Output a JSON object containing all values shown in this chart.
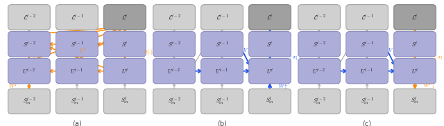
{
  "box_purple": "#ADADD9",
  "box_gray_light": "#D0D0D0",
  "box_gray_dark": "#A0A0A0",
  "edge_purple": "#8888BB",
  "edge_gray": "#999999",
  "orange": "#FF8800",
  "blue": "#2255EE",
  "gray_arr": "#AAAAAA",
  "bg": "#FFFFFF",
  "subcaptions": [
    "(a)",
    "(b)",
    "(c)"
  ]
}
